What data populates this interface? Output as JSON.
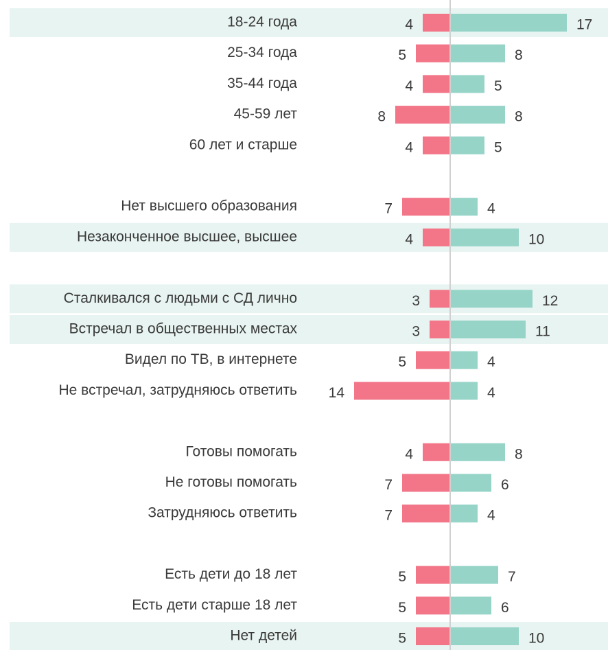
{
  "chart_data": [
    {
      "type": "diverging-bar",
      "categories": [
        "18-24 года",
        "25-34 года",
        "35-44 года",
        "45-59 лет",
        "60 лет и старше"
      ],
      "highlight": [
        true,
        false,
        false,
        false,
        false
      ],
      "series": [
        {
          "color": "#f27588",
          "values": [
            4,
            5,
            4,
            8,
            4
          ]
        },
        {
          "color": "#96d4c8",
          "values": [
            17,
            8,
            5,
            8,
            5
          ]
        }
      ]
    },
    {
      "type": "diverging-bar",
      "categories": [
        "Нет высшего образования",
        "Незаконченное высшее, высшее"
      ],
      "highlight": [
        false,
        true
      ],
      "series": [
        {
          "color": "#f27588",
          "values": [
            7,
            4
          ]
        },
        {
          "color": "#96d4c8",
          "values": [
            4,
            10
          ]
        }
      ]
    },
    {
      "type": "diverging-bar",
      "categories": [
        "Сталкивался с людьми с СД лично",
        "Встречал в общественных местах",
        "Видел по ТВ, в интернете",
        "Не встречал, затрудняюсь ответить"
      ],
      "highlight": [
        true,
        true,
        false,
        false
      ],
      "series": [
        {
          "color": "#f27588",
          "values": [
            3,
            3,
            5,
            14
          ]
        },
        {
          "color": "#96d4c8",
          "values": [
            12,
            11,
            4,
            4
          ]
        }
      ]
    },
    {
      "type": "diverging-bar",
      "categories": [
        "Готовы помогать",
        "Не готовы помогать",
        "Затрудняюсь ответить"
      ],
      "highlight": [
        false,
        false,
        false
      ],
      "series": [
        {
          "color": "#f27588",
          "values": [
            4,
            7,
            7
          ]
        },
        {
          "color": "#96d4c8",
          "values": [
            8,
            6,
            4
          ]
        }
      ]
    },
    {
      "type": "diverging-bar",
      "categories": [
        "Есть дети до 18 лет",
        "Есть дети старше 18 лет",
        "Нет детей"
      ],
      "highlight": [
        false,
        false,
        true
      ],
      "series": [
        {
          "color": "#f27588",
          "values": [
            5,
            5,
            5
          ]
        },
        {
          "color": "#96d4c8",
          "values": [
            7,
            6,
            10
          ]
        }
      ]
    }
  ]
}
